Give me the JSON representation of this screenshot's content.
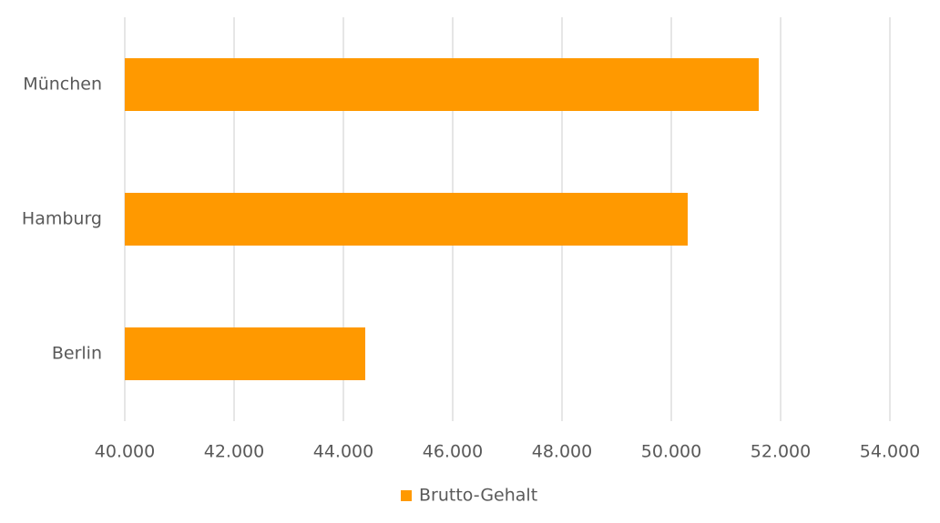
{
  "chart_data": {
    "type": "bar",
    "orientation": "horizontal",
    "categories": [
      "München",
      "Hamburg",
      "Berlin"
    ],
    "series": [
      {
        "name": "Brutto-Gehalt",
        "color": "#ff9900",
        "values": [
          51600,
          50300,
          44400
        ]
      }
    ],
    "xlim": [
      40000,
      54000
    ],
    "xticks": [
      {
        "value": 40000,
        "label": "40.000"
      },
      {
        "value": 42000,
        "label": "42.000"
      },
      {
        "value": 44000,
        "label": "44.000"
      },
      {
        "value": 46000,
        "label": "46.000"
      },
      {
        "value": 48000,
        "label": "48.000"
      },
      {
        "value": 50000,
        "label": "50.000"
      },
      {
        "value": 52000,
        "label": "52.000"
      },
      {
        "value": 54000,
        "label": "54.000"
      }
    ],
    "grid": true,
    "legend": "bottom"
  }
}
